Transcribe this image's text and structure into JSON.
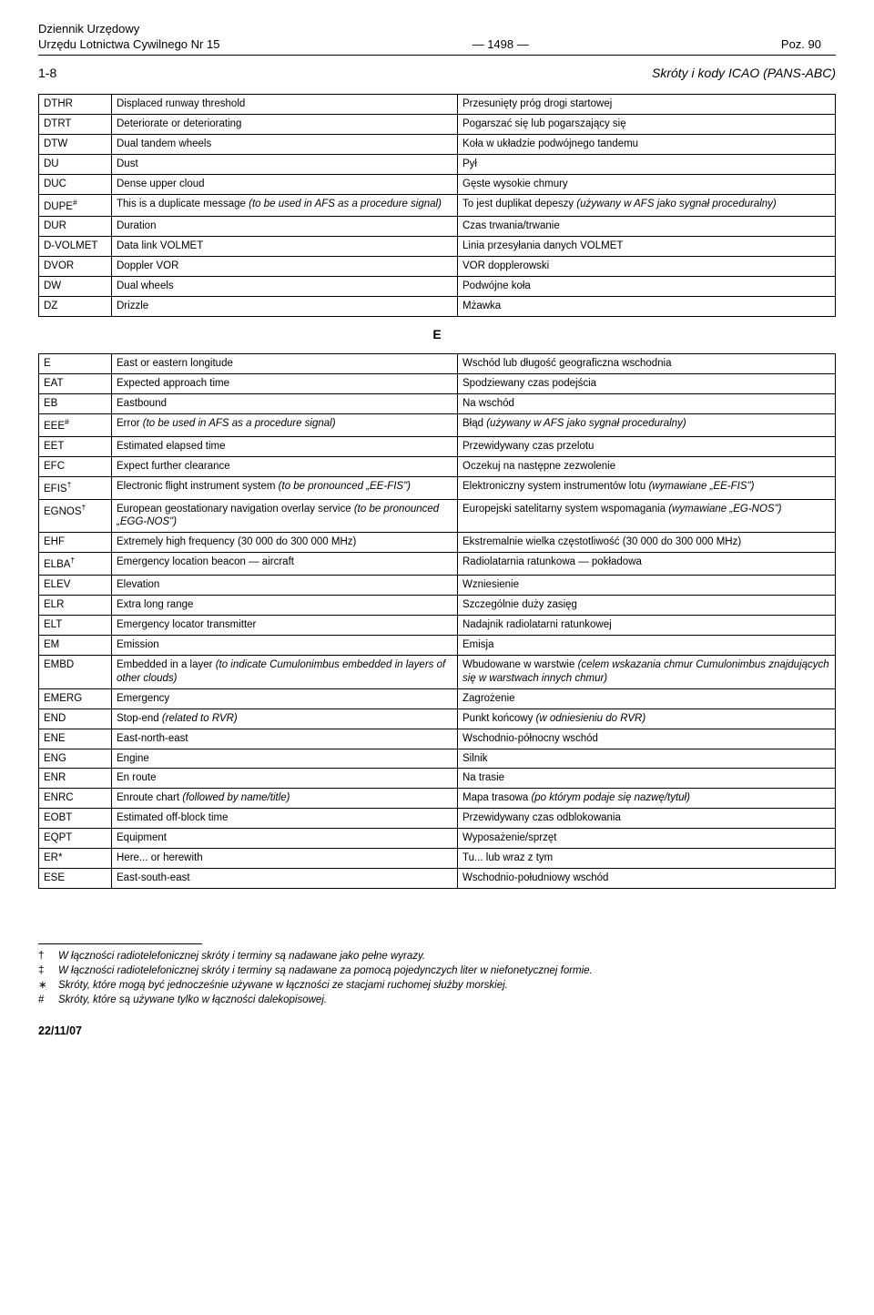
{
  "header": {
    "left_line1": "Dziennik Urzędowy",
    "left_line2": "Urzędu Lotnictwa Cywilnego Nr 15",
    "center": "— 1498 —",
    "right": "Poz. 90"
  },
  "subheader": {
    "left": "1-8",
    "right": "Skróty i kody ICAO (PANS-ABC)"
  },
  "table1": [
    {
      "c": "DTHR",
      "e": "Displaced runway threshold",
      "p": "Przesunięty próg drogi startowej"
    },
    {
      "c": "DTRT",
      "e": "Deteriorate or deteriorating",
      "p": "Pogarszać się lub pogarszający się"
    },
    {
      "c": "DTW",
      "e": "Dual tandem wheels",
      "p": "Koła w układzie podwójnego tandemu"
    },
    {
      "c": "DU",
      "e": "Dust",
      "p": "Pył"
    },
    {
      "c": "DUC",
      "e": "Dense upper cloud",
      "p": "Gęste wysokie chmury"
    },
    {
      "c": "DUPE<sup>#</sup>",
      "e": "This is a duplicate message <span class=\"italic\">(to be used in AFS as a procedure signal)</span>",
      "p": "To jest duplikat depeszy <span class=\"italic\">(używany w AFS jako sygnał proceduralny)</span>"
    },
    {
      "c": "DUR",
      "e": "Duration",
      "p": "Czas trwania/trwanie"
    },
    {
      "c": "D-VOLMET",
      "e": "Data link VOLMET",
      "p": "Linia przesyłania danych VOLMET"
    },
    {
      "c": "DVOR",
      "e": "Doppler VOR",
      "p": "VOR dopplerowski"
    },
    {
      "c": "DW",
      "e": "Dual wheels",
      "p": "Podwójne koła"
    },
    {
      "c": "DZ",
      "e": "Drizzle",
      "p": "Mżawka"
    }
  ],
  "section_letter": "E",
  "table2": [
    {
      "c": "E",
      "e": "East or eastern longitude",
      "p": "Wschód lub długość geograficzna wschodnia"
    },
    {
      "c": "EAT",
      "e": "Expected approach time",
      "p": "Spodziewany czas podejścia"
    },
    {
      "c": "EB",
      "e": "Eastbound",
      "p": "Na wschód"
    },
    {
      "c": "EEE<sup>#</sup>",
      "e": "Error <span class=\"italic\">(to be used in AFS as a procedure signal)</span>",
      "p": "Błąd <span class=\"italic\">(używany w AFS jako sygnał proceduralny)</span>"
    },
    {
      "c": "EET",
      "e": "Estimated elapsed time",
      "p": "Przewidywany czas przelotu"
    },
    {
      "c": "EFC",
      "e": "Expect further clearance",
      "p": "Oczekuj na następne zezwolenie"
    },
    {
      "c": "EFIS<sup>†</sup>",
      "e": "Electronic flight instrument system <span class=\"italic\">(to be pronounced „EE-FIS\")</span>",
      "p": "Elektroniczny system instrumentów lotu <span class=\"italic\">(wymawiane „EE-FIS\")</span>"
    },
    {
      "c": "EGNOS<sup>†</sup>",
      "e": "European geostationary navigation overlay service <span class=\"italic\">(to be pronounced „EGG-NOS\")</span>",
      "p": "Europejski satelitarny system wspomagania <span class=\"italic\">(wymawiane „EG-NOS\")</span>"
    },
    {
      "c": "EHF",
      "e": "Extremely high frequency (30 000 do 300 000 MHz)",
      "p": "Ekstremalnie wielka częstotliwość (30 000 do 300 000 MHz)"
    },
    {
      "c": "ELBA<sup>†</sup>",
      "e": "Emergency location beacon — aircraft",
      "p": "Radiolatarnia ratunkowa — pokładowa"
    },
    {
      "c": "ELEV",
      "e": "Elevation",
      "p": "Wzniesienie"
    },
    {
      "c": "ELR",
      "e": "Extra long range",
      "p": "Szczególnie duży zasięg"
    },
    {
      "c": "ELT",
      "e": "Emergency locator transmitter",
      "p": "Nadajnik radiolatarni ratunkowej"
    },
    {
      "c": "EM",
      "e": "Emission",
      "p": "Emisja"
    },
    {
      "c": "EMBD",
      "e": "Embedded in a layer <span class=\"italic\">(to indicate Cumulonimbus embedded in layers of other clouds)</span>",
      "p": "Wbudowane w warstwie <span class=\"italic\">(celem wskazania chmur Cumulonimbus znajdujących się w warstwach innych chmur)</span>"
    },
    {
      "c": "EMERG",
      "e": "Emergency",
      "p": "Zagrożenie"
    },
    {
      "c": "END",
      "e": "Stop-end <span class=\"italic\">(related to RVR)</span>",
      "p": "Punkt końcowy <span class=\"italic\">(w odniesieniu do RVR)</span>"
    },
    {
      "c": "ENE",
      "e": "East-north-east",
      "p": "Wschodnio-północny wschód"
    },
    {
      "c": "ENG",
      "e": "Engine",
      "p": "Silnik"
    },
    {
      "c": "ENR",
      "e": "En route",
      "p": "Na trasie"
    },
    {
      "c": "ENRC",
      "e": "Enroute chart <span class=\"italic\">(followed by name/title)</span>",
      "p": "Mapa trasowa <span class=\"italic\">(po którym podaje się nazwę/tytuł)</span>"
    },
    {
      "c": "EOBT",
      "e": "Estimated off-block time",
      "p": "Przewidywany czas odblokowania"
    },
    {
      "c": "EQPT",
      "e": "Equipment",
      "p": "Wyposażenie/sprzęt"
    },
    {
      "c": "ER*",
      "e": "Here... or herewith",
      "p": "Tu... lub wraz z tym"
    },
    {
      "c": "ESE",
      "e": "East-south-east",
      "p": "Wschodnio-południowy wschód"
    }
  ],
  "footnotes": [
    {
      "sym": "†",
      "txt": "W łączności radiotelefonicznej skróty i terminy są nadawane jako pełne wyrazy."
    },
    {
      "sym": "‡",
      "txt": "W łączności radiotelefonicznej skróty i terminy są nadawane za pomocą pojedynczych liter w niefonetycznej formie."
    },
    {
      "sym": "∗",
      "txt": "Skróty, które mogą być jednocześnie używane w łączności ze stacjami ruchomej służby morskiej."
    },
    {
      "sym": "#",
      "txt": "Skróty, które są używane tylko w łączności dalekopisowej."
    }
  ],
  "date": "22/11/07"
}
